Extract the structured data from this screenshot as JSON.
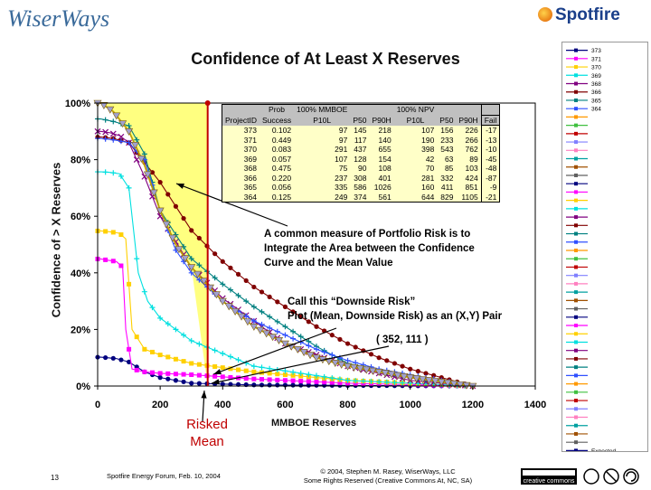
{
  "header": {
    "logo_left_text": "WiserWays",
    "logo_right_text": "Spotfire"
  },
  "chart_data": {
    "type": "line",
    "title": "Confidence of At Least X Reserves",
    "xlabel": "MMBOE Reserves",
    "ylabel": "Confidence of > X Reserves",
    "xlim": [
      0,
      1400
    ],
    "ylim": [
      0,
      1
    ],
    "x_ticks": [
      "0",
      "200",
      "400",
      "600",
      "800",
      "1000",
      "1200",
      "1400"
    ],
    "y_ticks": [
      "0%",
      "20%",
      "40%",
      "60%",
      "80%",
      "100%"
    ],
    "series": [
      {
        "name": "373",
        "color": "#00007f",
        "x": [
          0,
          10,
          30,
          60,
          100,
          150,
          200,
          300,
          500,
          800,
          1200
        ],
        "y": [
          0.102,
          0.102,
          0.1,
          0.097,
          0.085,
          0.05,
          0.03,
          0.01,
          0.004,
          0.002,
          0
        ]
      },
      {
        "name": "371",
        "color": "#ff00ff",
        "x": [
          0,
          10,
          30,
          60,
          80,
          90,
          110,
          150,
          200,
          300,
          500,
          800,
          1200
        ],
        "y": [
          0.449,
          0.449,
          0.445,
          0.44,
          0.42,
          0.2,
          0.06,
          0.05,
          0.045,
          0.04,
          0.025,
          0.01,
          0
        ]
      },
      {
        "name": "370",
        "color": "#ffd000",
        "x": [
          0,
          10,
          40,
          70,
          90,
          110,
          150,
          200,
          300,
          500,
          800,
          1200
        ],
        "y": [
          0.548,
          0.548,
          0.545,
          0.54,
          0.52,
          0.2,
          0.13,
          0.11,
          0.08,
          0.05,
          0.02,
          0
        ]
      },
      {
        "name": "369",
        "color": "#00e0e0",
        "x": [
          0,
          10,
          40,
          70,
          100,
          130,
          160,
          200,
          300,
          500,
          800,
          1200
        ],
        "y": [
          0.757,
          0.757,
          0.755,
          0.75,
          0.7,
          0.4,
          0.3,
          0.24,
          0.16,
          0.07,
          0.02,
          0
        ]
      },
      {
        "name": "368",
        "color": "#800080",
        "x": [
          0,
          10,
          40,
          70,
          100,
          150,
          200,
          300,
          400,
          500,
          600,
          800,
          1000,
          1200
        ],
        "y": [
          0.9,
          0.9,
          0.895,
          0.885,
          0.86,
          0.74,
          0.6,
          0.42,
          0.31,
          0.23,
          0.15,
          0.07,
          0.02,
          0
        ]
      },
      {
        "name": "366",
        "color": "#800000",
        "x": [
          0,
          10,
          50,
          100,
          200,
          300,
          400,
          500,
          600,
          700,
          800,
          900,
          1000,
          1100,
          1200
        ],
        "y": [
          0.88,
          0.88,
          0.875,
          0.86,
          0.72,
          0.55,
          0.44,
          0.35,
          0.28,
          0.21,
          0.15,
          0.1,
          0.06,
          0.03,
          0
        ]
      },
      {
        "name": "365",
        "color": "#008080",
        "x": [
          0,
          10,
          50,
          100,
          150,
          200,
          300,
          400,
          500,
          600,
          700,
          800,
          1000,
          1200
        ],
        "y": [
          0.944,
          0.944,
          0.935,
          0.92,
          0.82,
          0.62,
          0.45,
          0.36,
          0.28,
          0.21,
          0.14,
          0.08,
          0.03,
          0
        ]
      },
      {
        "name": "364",
        "color": "#3050ff",
        "x": [
          0,
          10,
          50,
          100,
          150,
          200,
          250,
          300,
          400,
          500,
          600,
          700,
          800,
          900,
          1000,
          1100,
          1200
        ],
        "y": [
          0.875,
          0.875,
          0.87,
          0.86,
          0.8,
          0.62,
          0.48,
          0.4,
          0.3,
          0.23,
          0.18,
          0.13,
          0.09,
          0.06,
          0.04,
          0.02,
          0
        ]
      },
      {
        "name": "Expected",
        "color": "#c0a000",
        "x": [
          0,
          10,
          50,
          100,
          150,
          200,
          250,
          300,
          400,
          500,
          600,
          700,
          800,
          900,
          1000,
          1100,
          1200
        ],
        "y": [
          1,
          1,
          0.97,
          0.9,
          0.78,
          0.62,
          0.5,
          0.42,
          0.3,
          0.21,
          0.15,
          0.1,
          0.07,
          0.05,
          0.03,
          0.015,
          0
        ]
      }
    ],
    "annotations": [
      {
        "id": "risk-note",
        "text": "A common measure of Portfolio Risk is to\nIntegrate the Area between the Confidence\nCurve and the Mean Value"
      },
      {
        "id": "downside-note",
        "text": "Call this “Downside Risk”\nPlot (Mean, Downside Risk) as an (X,Y) Pair"
      },
      {
        "id": "pair-note",
        "text": "( 352, 111 )"
      }
    ],
    "risked_mean": {
      "x": 352,
      "label": "Risked Mean"
    },
    "legend": {
      "placement": "right",
      "entries": [
        "373",
        "371",
        "370",
        "369",
        "368",
        "366",
        "365",
        "364"
      ],
      "unlabeled_rows": 40,
      "last_entry": "Expected"
    }
  },
  "prob_table": {
    "header_row1": [
      "",
      "Prob",
      "100% MMBOE",
      "",
      "",
      "100% NPV",
      "",
      "",
      ""
    ],
    "header_row2": [
      "ProjectID",
      "Success",
      "P10L",
      "P50",
      "P90H",
      "P10L",
      "P50",
      "P90H",
      "Fail"
    ],
    "rows": [
      [
        "373",
        "0.102",
        "97",
        "145",
        "218",
        "107",
        "156",
        "226",
        "-17"
      ],
      [
        "371",
        "0.449",
        "97",
        "117",
        "140",
        "190",
        "233",
        "266",
        "-13"
      ],
      [
        "370",
        "0.083",
        "291",
        "437",
        "655",
        "398",
        "543",
        "762",
        "-10"
      ],
      [
        "369",
        "0.057",
        "107",
        "128",
        "154",
        "42",
        "63",
        "89",
        "-45"
      ],
      [
        "368",
        "0.475",
        "75",
        "90",
        "108",
        "70",
        "85",
        "103",
        "-48"
      ],
      [
        "366",
        "0.220",
        "237",
        "308",
        "401",
        "281",
        "332",
        "424",
        "-87"
      ],
      [
        "365",
        "0.056",
        "335",
        "586",
        "1026",
        "160",
        "411",
        "851",
        "-9"
      ],
      [
        "364",
        "0.125",
        "249",
        "374",
        "561",
        "644",
        "829",
        "1105",
        "-21"
      ]
    ]
  },
  "footer": {
    "page_number": "13",
    "forum": "Spotfire Energy Forum, Feb. 10, 2004",
    "copyright_line1": "© 2004, Stephen M. Rasey, WiserWays, LLC",
    "copyright_line2": "Some Rights Reserved (Creative Commons At, NC, SA)",
    "license_text": "creative commons"
  },
  "colors": {
    "fill_area": "#ffff80",
    "risked_mean_line": "#c00000",
    "table_header_fill": "#c0c0c0",
    "table_body_fill": "#ffffc8"
  }
}
